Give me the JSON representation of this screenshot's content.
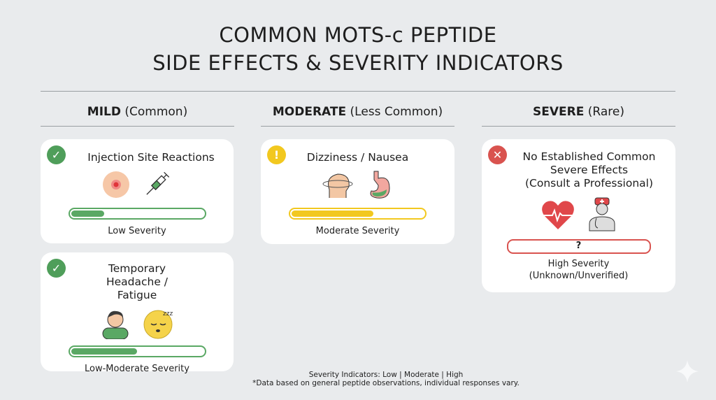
{
  "title": {
    "line1": "COMMON MOTS-c PEPTIDE",
    "line2": "SIDE EFFECTS & SEVERITY INDICATORS"
  },
  "columns": [
    {
      "heading": "MILD",
      "qualifier": "(Common)"
    },
    {
      "heading": "MODERATE",
      "qualifier": "(Less Common)"
    },
    {
      "heading": "SEVERE",
      "qualifier": "(Rare)"
    }
  ],
  "cards": [
    {
      "title": "Injection Site Reactions",
      "severity": "Low Severity",
      "fill_percent": 25,
      "color": "#5aa864",
      "status_icon": "check-icon",
      "icons": [
        "skin-spot-icon",
        "syringe-icon"
      ]
    },
    {
      "title": "Temporary Headache / Fatigue",
      "severity": "Low-Moderate Severity",
      "fill_percent": 50,
      "color": "#5aa864",
      "status_icon": "check-icon",
      "icons": [
        "person-headache-icon",
        "sleepy-face-icon"
      ]
    },
    {
      "title": "Dizziness / Nausea",
      "severity": "Moderate Severity",
      "fill_percent": 62,
      "color": "#f2c81f",
      "status_icon": "exclamation-icon",
      "icons": [
        "dizzy-head-icon",
        "stomach-icon"
      ]
    },
    {
      "title_lines": [
        "No Established Common",
        "Severe Effects",
        "(Consult a Professional)"
      ],
      "bar_text": "?",
      "severity_lines": [
        "High Severity",
        "(Unknown/Unverified)"
      ],
      "color": "#d9534f",
      "status_icon": "x-icon",
      "icons": [
        "heartbeat-icon",
        "doctor-icon"
      ]
    }
  ],
  "footer": {
    "legend": "Severity Indicators: Low | Moderate | High",
    "note": "*Data based on general peptide observations, individual responses vary."
  }
}
